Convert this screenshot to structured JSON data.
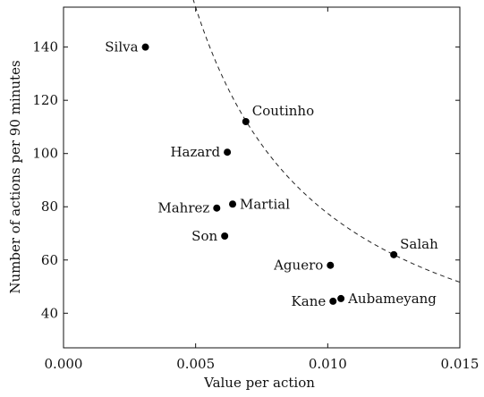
{
  "chart_data": {
    "type": "scatter",
    "title": "",
    "xlabel": "Value per action",
    "ylabel": "Number of actions per 90 minutes",
    "xlim": [
      0,
      0.015
    ],
    "ylim": [
      27,
      155
    ],
    "xticks": [
      0,
      0.005,
      0.01,
      0.015
    ],
    "xtick_labels": [
      "0.000",
      "0.005",
      "0.010",
      "0.015"
    ],
    "yticks": [
      40,
      60,
      80,
      100,
      120,
      140
    ],
    "ytick_labels": [
      "40",
      "60",
      "80",
      "100",
      "120",
      "140"
    ],
    "grid": false,
    "points": [
      {
        "label": "Silva",
        "x": 0.0031,
        "y": 140,
        "label_side": "left"
      },
      {
        "label": "Coutinho",
        "x": 0.0069,
        "y": 112,
        "label_side": "right-up"
      },
      {
        "label": "Hazard",
        "x": 0.0062,
        "y": 100.5,
        "label_side": "left"
      },
      {
        "label": "Mahrez",
        "x": 0.0058,
        "y": 79.5,
        "label_side": "left"
      },
      {
        "label": "Martial",
        "x": 0.0064,
        "y": 81,
        "label_side": "right"
      },
      {
        "label": "Son",
        "x": 0.0061,
        "y": 69,
        "label_side": "left"
      },
      {
        "label": "Aguero",
        "x": 0.0101,
        "y": 58,
        "label_side": "left"
      },
      {
        "label": "Salah",
        "x": 0.0125,
        "y": 62,
        "label_side": "right-up"
      },
      {
        "label": "Kane",
        "x": 0.0102,
        "y": 44.5,
        "label_side": "left"
      },
      {
        "label": "Aubameyang",
        "x": 0.0105,
        "y": 45.5,
        "label_side": "right"
      }
    ],
    "curve": {
      "style": "dashed",
      "k": 0.775,
      "x_start": 0.0049,
      "x_end": 0.015
    }
  }
}
